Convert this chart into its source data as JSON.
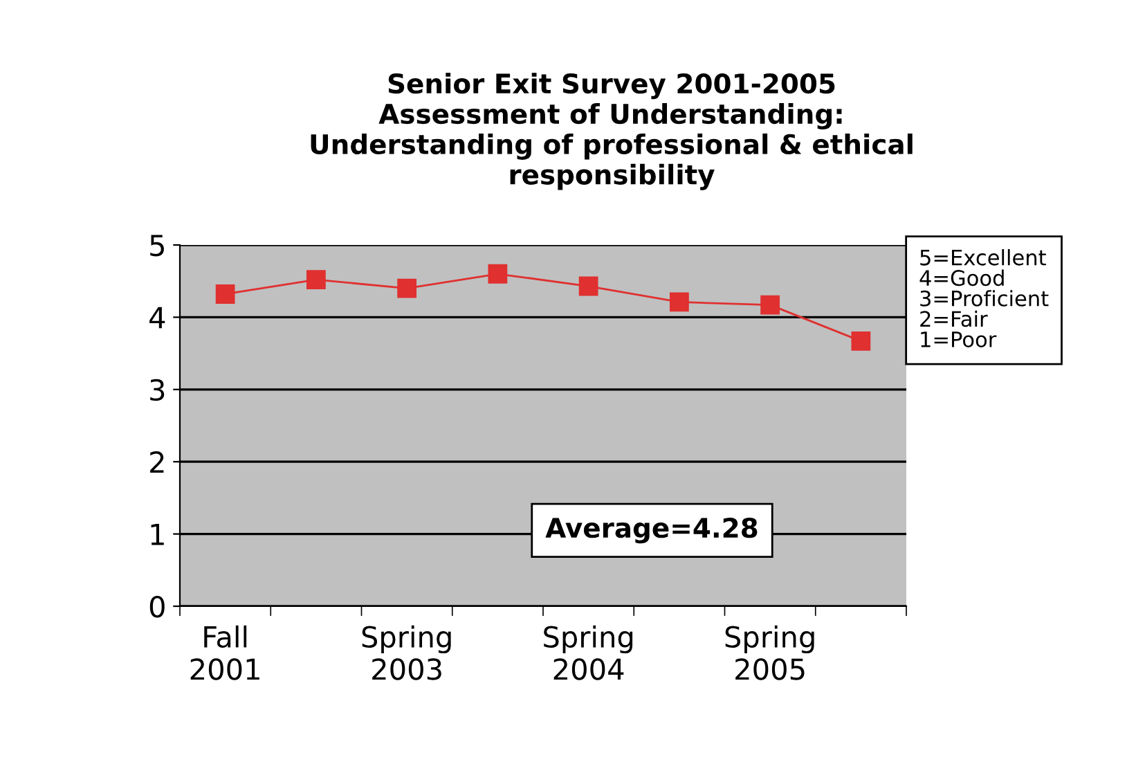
{
  "chart_data": {
    "type": "line",
    "title": "Senior Exit Survey 2001-2005\nAssessment of Understanding:\nUnderstanding of professional & ethical\nresponsibility",
    "categories": [
      "Fall\n2001",
      null,
      "Spring\n2003",
      null,
      "Spring\n2004",
      null,
      "Spring\n2005",
      null
    ],
    "series": [
      {
        "color": "#e03030",
        "values": [
          4.32,
          4.52,
          4.4,
          4.6,
          4.43,
          4.21,
          4.17,
          3.67
        ]
      }
    ],
    "ylim": [
      0,
      5
    ],
    "yticks": [
      0,
      1,
      2,
      3,
      4,
      5
    ],
    "grid": "y",
    "marker": "square",
    "line_style": "solid",
    "legend": false,
    "annotations": [
      "Average=4.28",
      "5=Excellent\n4=Good\n3=Proficient\n2=Fair\n1=Poor"
    ]
  }
}
